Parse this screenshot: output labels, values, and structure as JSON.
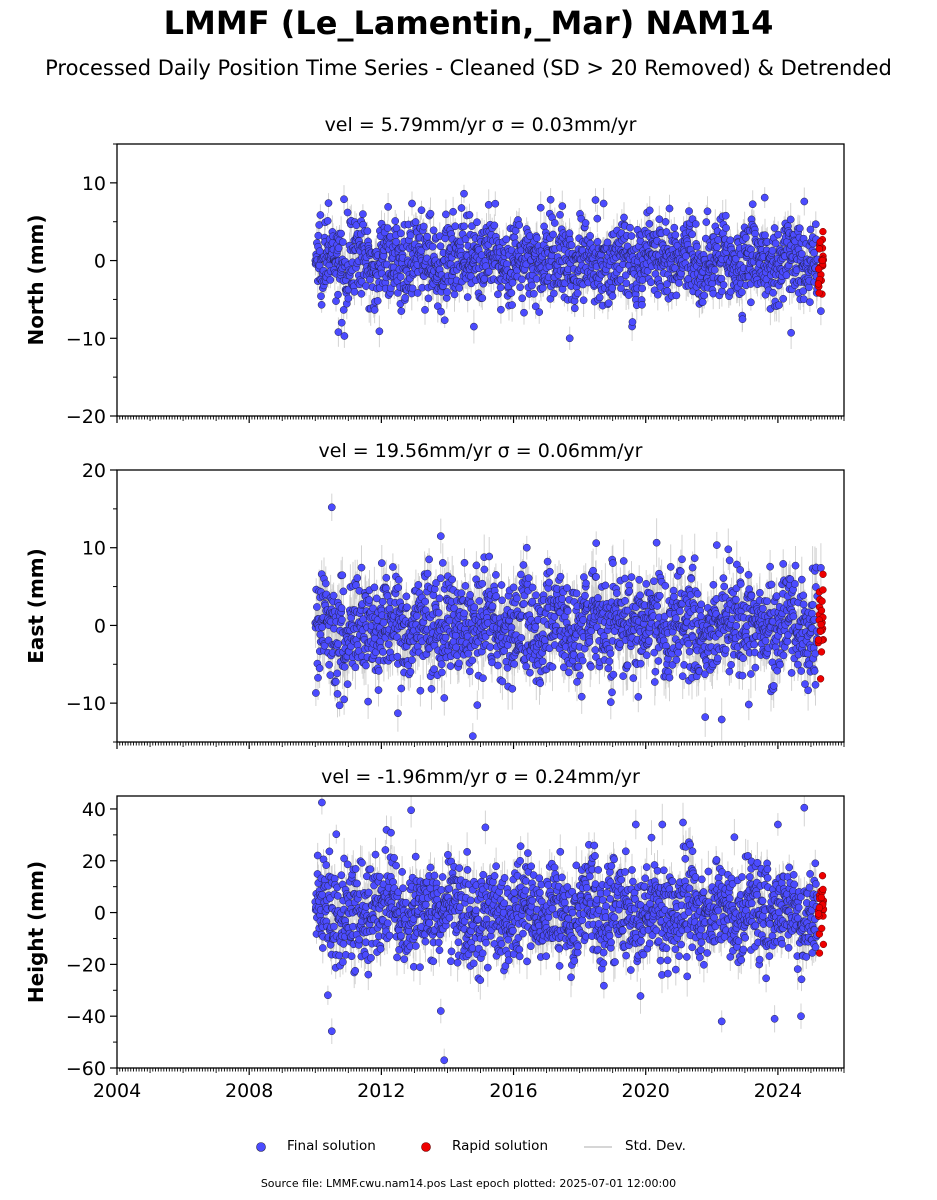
{
  "title": "LMMF (Le_Lamentin,_Mar) NAM14",
  "subtitle": "Processed Daily Position Time Series - Cleaned (SD > 20 Removed) & Detrended",
  "legend": {
    "final": "Final solution",
    "rapid": "Rapid solution",
    "std": "Std. Dev."
  },
  "footer": "Source file: LMMF.cwu.nam14.pos  Last epoch plotted: 2025-07-01 12:00:00",
  "colors": {
    "final": "#4b4bff",
    "rapid": "#ee0000",
    "std": "#c8c8c8",
    "edge": "#222244"
  },
  "chart_data": [
    {
      "type": "scatter",
      "component": "north",
      "title": "vel = 5.79mm/yr   σ = 0.03mm/yr",
      "ylabel": "North (mm)",
      "xlim": [
        2004.0,
        2026.0
      ],
      "ylim": [
        -20,
        15
      ],
      "yticks": [
        -20,
        -10,
        0,
        10
      ],
      "ytick_labels": [
        "−20",
        "−10",
        "0",
        "10"
      ],
      "xticks": [
        2004,
        2008,
        2012,
        2016,
        2020,
        2024
      ],
      "xtick_labels": [],
      "data_span": [
        2010.0,
        2025.4
      ],
      "rapid_start": 2025.2,
      "spread": 2.6,
      "stddev": 1.4,
      "extremes": [
        [
          2014.5,
          8.6
        ],
        [
          2010.4,
          7.4
        ],
        [
          2023.6,
          8.1
        ],
        [
          2024.8,
          7.6
        ],
        [
          2017.7,
          -10.0
        ],
        [
          2010.7,
          -9.2
        ],
        [
          2024.4,
          -9.3
        ],
        [
          2014.8,
          -8.5
        ],
        [
          2019.6,
          -7.9
        ],
        [
          2025.3,
          -6.5
        ]
      ]
    },
    {
      "type": "scatter",
      "component": "east",
      "title": "vel = 19.56mm/yr   σ = 0.06mm/yr",
      "ylabel": "East (mm)",
      "xlim": [
        2004.0,
        2026.0
      ],
      "ylim": [
        -15,
        20
      ],
      "yticks": [
        -10,
        0,
        10,
        20
      ],
      "ytick_labels": [
        "−10",
        "0",
        "10",
        "20"
      ],
      "xticks": [
        2004,
        2008,
        2012,
        2016,
        2020,
        2024
      ],
      "xtick_labels": [],
      "data_span": [
        2010.0,
        2025.4
      ],
      "rapid_start": 2025.2,
      "spread": 3.3,
      "stddev": 2.0,
      "extremes": [
        [
          2010.5,
          15.2
        ],
        [
          2013.8,
          11.5
        ],
        [
          2018.5,
          10.6
        ],
        [
          2016.4,
          10.0
        ],
        [
          2022.5,
          9.8
        ],
        [
          2011.6,
          -9.8
        ],
        [
          2012.5,
          -11.3
        ],
        [
          2021.8,
          -11.8
        ],
        [
          2022.3,
          -12.1
        ],
        [
          2025.3,
          7.4
        ]
      ]
    },
    {
      "type": "scatter",
      "component": "height",
      "title": "vel = -1.96mm/yr   σ = 0.24mm/yr",
      "ylabel": "Height (mm)",
      "xlim": [
        2004.0,
        2026.0
      ],
      "ylim": [
        -60,
        45
      ],
      "yticks": [
        -60,
        -40,
        -20,
        0,
        20,
        40
      ],
      "ytick_labels": [
        "−60",
        "−40",
        "−20",
        "0",
        "20",
        "40"
      ],
      "xticks": [
        2004,
        2008,
        2012,
        2016,
        2020,
        2024
      ],
      "xtick_labels": [
        "2004",
        "2008",
        "2012",
        "2016",
        "2020",
        "2024"
      ],
      "data_span": [
        2010.0,
        2025.4
      ],
      "rapid_start": 2025.2,
      "spread": 9.5,
      "stddev": 5.0,
      "extremes": [
        [
          2010.2,
          42.5
        ],
        [
          2012.9,
          39.5
        ],
        [
          2024.8,
          40.5
        ],
        [
          2019.7,
          34.0
        ],
        [
          2020.5,
          34.0
        ],
        [
          2024.0,
          34.0
        ],
        [
          2013.9,
          -57.0
        ],
        [
          2010.5,
          -45.8
        ],
        [
          2023.9,
          -41.0
        ],
        [
          2024.7,
          -40.0
        ],
        [
          2013.8,
          -38.0
        ],
        [
          2022.3,
          -42.0
        ]
      ]
    }
  ]
}
